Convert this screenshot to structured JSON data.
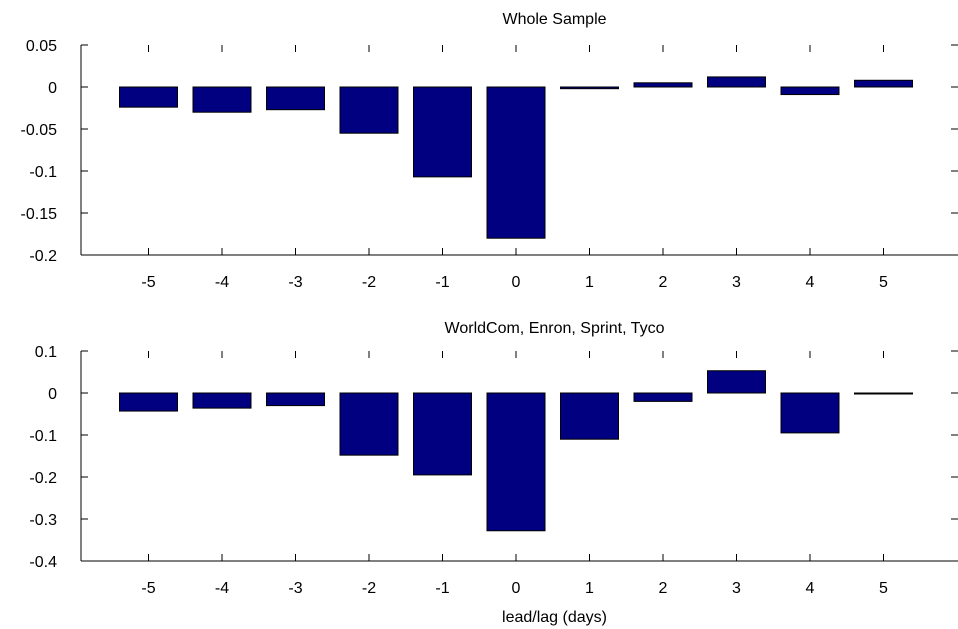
{
  "chart_data": [
    {
      "type": "bar",
      "title": "Whole Sample",
      "xlabel": "",
      "ylabel": "",
      "categories": [
        "-5",
        "-4",
        "-3",
        "-2",
        "-1",
        "0",
        "1",
        "2",
        "3",
        "4",
        "5"
      ],
      "values": [
        -0.024,
        -0.03,
        -0.027,
        -0.055,
        -0.107,
        -0.18,
        -0.002,
        0.005,
        0.012,
        -0.009,
        0.008
      ],
      "ylim": [
        -0.2,
        0.05
      ],
      "yticks": [
        0.05,
        0,
        -0.05,
        -0.1,
        -0.15,
        -0.2
      ],
      "ytick_labels": [
        "0.05",
        "0",
        "-0.05",
        "-0.1",
        "-0.15",
        "-0.2"
      ],
      "bar_color": "#000080",
      "grid": false
    },
    {
      "type": "bar",
      "title": "WorldCom, Enron, Sprint, Tyco",
      "xlabel": "lead/lag (days)",
      "ylabel": "",
      "categories": [
        "-5",
        "-4",
        "-3",
        "-2",
        "-1",
        "0",
        "1",
        "2",
        "3",
        "4",
        "5"
      ],
      "values": [
        -0.043,
        -0.036,
        -0.03,
        -0.148,
        -0.195,
        -0.328,
        -0.11,
        -0.02,
        0.053,
        -0.095,
        -0.002
      ],
      "ylim": [
        -0.4,
        0.1
      ],
      "yticks": [
        0.1,
        0,
        -0.1,
        -0.2,
        -0.3,
        -0.4
      ],
      "ytick_labels": [
        "0.1",
        "0",
        "-0.1",
        "-0.2",
        "-0.3",
        "-0.4"
      ],
      "bar_color": "#000080",
      "grid": false
    }
  ]
}
